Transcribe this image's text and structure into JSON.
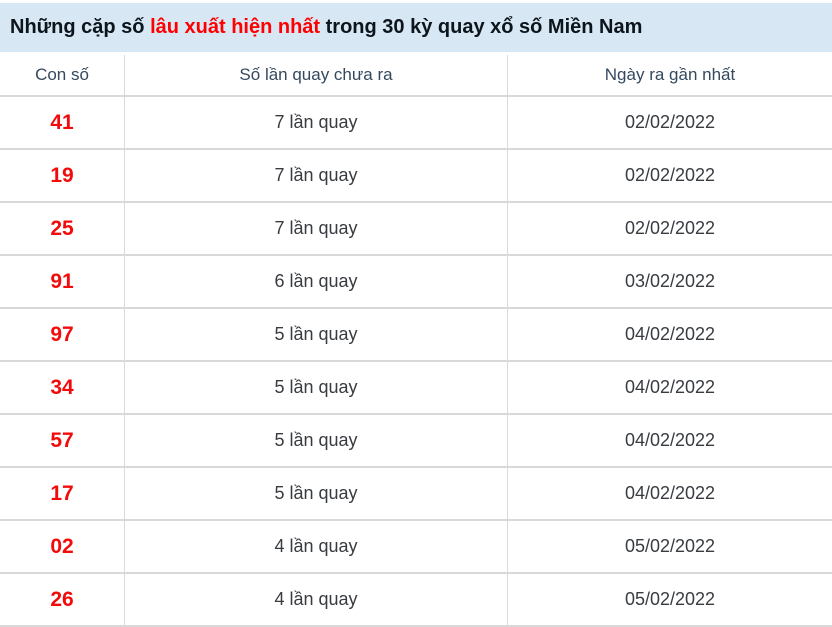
{
  "title": {
    "prefix": "Những cặp số ",
    "highlight": "lâu xuất hiện nhất",
    "suffix": " trong 30 kỳ quay xổ số Miền Nam"
  },
  "table": {
    "columns": [
      "Con số",
      "Số lần quay chưa ra",
      "Ngày ra gần nhất"
    ],
    "rows": [
      {
        "number": "41",
        "count": "7 lần quay",
        "date": "02/02/2022"
      },
      {
        "number": "19",
        "count": "7 lần quay",
        "date": "02/02/2022"
      },
      {
        "number": "25",
        "count": "7 lần quay",
        "date": "02/02/2022"
      },
      {
        "number": "91",
        "count": "6 lần quay",
        "date": "03/02/2022"
      },
      {
        "number": "97",
        "count": "5 lần quay",
        "date": "04/02/2022"
      },
      {
        "number": "34",
        "count": "5 lần quay",
        "date": "04/02/2022"
      },
      {
        "number": "57",
        "count": "5 lần quay",
        "date": "04/02/2022"
      },
      {
        "number": "17",
        "count": "5 lần quay",
        "date": "04/02/2022"
      },
      {
        "number": "02",
        "count": "4 lần quay",
        "date": "05/02/2022"
      },
      {
        "number": "26",
        "count": "4 lần quay",
        "date": "05/02/2022"
      }
    ]
  },
  "colors": {
    "title_bg": "#d8e7f4",
    "highlight_red": "#ff0000",
    "number_red": "#f20b0b",
    "header_text": "#34495e",
    "cell_text": "#383c41",
    "title_text": "#0c141c",
    "border": "#d9d9d9",
    "page_bg": "#ffffff"
  }
}
